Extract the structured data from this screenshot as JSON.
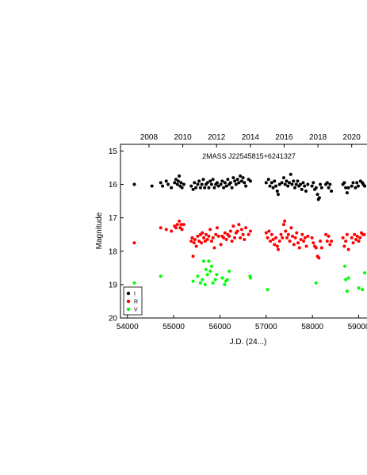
{
  "chart_data": {
    "type": "scatter",
    "title": "2MASS J22545815+6241327",
    "xlabel": "J.D. (24...)",
    "ylabel": "Magnitude",
    "xlim": [
      53850,
      59300
    ],
    "ylim": [
      20,
      14.8
    ],
    "y_inverted": true,
    "x_ticks": [
      54000,
      55000,
      56000,
      57000,
      58000,
      59000
    ],
    "y_ticks": [
      15,
      16,
      17,
      18,
      19,
      20
    ],
    "top_axis_ticks": [
      {
        "jd": 54466,
        "label": "2008"
      },
      {
        "jd": 55197,
        "label": "2010"
      },
      {
        "jd": 55927,
        "label": "2012"
      },
      {
        "jd": 56658,
        "label": "2014"
      },
      {
        "jd": 57388,
        "label": "2016"
      },
      {
        "jd": 58119,
        "label": "2018"
      },
      {
        "jd": 58849,
        "label": "2020"
      }
    ],
    "legend_position": "bottom-left",
    "grid": false,
    "series": [
      {
        "name": "I",
        "color": "#000000",
        "points": [
          [
            54150,
            16.0
          ],
          [
            54530,
            16.05
          ],
          [
            54720,
            15.95
          ],
          [
            54760,
            16.05
          ],
          [
            54840,
            15.9
          ],
          [
            54880,
            16.0
          ],
          [
            54950,
            16.1
          ],
          [
            55020,
            15.95
          ],
          [
            55050,
            15.85
          ],
          [
            55080,
            16.0
          ],
          [
            55100,
            15.9
          ],
          [
            55120,
            15.75
          ],
          [
            55140,
            16.05
          ],
          [
            55160,
            15.95
          ],
          [
            55180,
            16.1
          ],
          [
            55220,
            16.0
          ],
          [
            55380,
            16.05
          ],
          [
            55420,
            16.15
          ],
          [
            55450,
            15.95
          ],
          [
            55480,
            16.1
          ],
          [
            55520,
            16.0
          ],
          [
            55550,
            15.9
          ],
          [
            55580,
            16.1
          ],
          [
            55610,
            16.0
          ],
          [
            55640,
            15.85
          ],
          [
            55670,
            16.1
          ],
          [
            55700,
            16.0
          ],
          [
            55730,
            15.95
          ],
          [
            55760,
            16.1
          ],
          [
            55790,
            15.9
          ],
          [
            55820,
            16.0
          ],
          [
            55850,
            15.85
          ],
          [
            55880,
            16.1
          ],
          [
            55910,
            16.0
          ],
          [
            55940,
            15.95
          ],
          [
            55970,
            16.05
          ],
          [
            56020,
            16.0
          ],
          [
            56050,
            15.9
          ],
          [
            56080,
            16.1
          ],
          [
            56110,
            15.95
          ],
          [
            56140,
            16.05
          ],
          [
            56170,
            15.85
          ],
          [
            56200,
            16.0
          ],
          [
            56230,
            15.95
          ],
          [
            56260,
            16.1
          ],
          [
            56290,
            15.8
          ],
          [
            56320,
            15.9
          ],
          [
            56350,
            16.0
          ],
          [
            56380,
            15.85
          ],
          [
            56410,
            15.95
          ],
          [
            56440,
            15.75
          ],
          [
            56470,
            15.9
          ],
          [
            56500,
            15.8
          ],
          [
            56530,
            15.95
          ],
          [
            56560,
            16.05
          ],
          [
            56620,
            15.85
          ],
          [
            56660,
            15.9
          ],
          [
            57000,
            15.95
          ],
          [
            57050,
            15.85
          ],
          [
            57080,
            16.05
          ],
          [
            57120,
            15.95
          ],
          [
            57150,
            16.1
          ],
          [
            57180,
            15.9
          ],
          [
            57210,
            16.05
          ],
          [
            57240,
            16.2
          ],
          [
            57260,
            16.3
          ],
          [
            57290,
            16.0
          ],
          [
            57340,
            15.95
          ],
          [
            57380,
            15.8
          ],
          [
            57410,
            16.0
          ],
          [
            57440,
            15.9
          ],
          [
            57470,
            16.05
          ],
          [
            57500,
            15.95
          ],
          [
            57530,
            15.7
          ],
          [
            57560,
            16.0
          ],
          [
            57590,
            15.9
          ],
          [
            57620,
            16.1
          ],
          [
            57650,
            16.0
          ],
          [
            57680,
            15.9
          ],
          [
            57710,
            16.05
          ],
          [
            57740,
            16.0
          ],
          [
            57770,
            16.15
          ],
          [
            57800,
            15.95
          ],
          [
            57830,
            16.05
          ],
          [
            57860,
            16.2
          ],
          [
            57900,
            16.0
          ],
          [
            57990,
            16.05
          ],
          [
            58020,
            15.95
          ],
          [
            58050,
            16.15
          ],
          [
            58080,
            16.1
          ],
          [
            58110,
            16.3
          ],
          [
            58130,
            16.45
          ],
          [
            58150,
            16.4
          ],
          [
            58170,
            16.0
          ],
          [
            58200,
            16.1
          ],
          [
            58290,
            16.0
          ],
          [
            58320,
            15.95
          ],
          [
            58350,
            16.1
          ],
          [
            58380,
            16.0
          ],
          [
            58410,
            16.2
          ],
          [
            58660,
            16.0
          ],
          [
            58690,
            15.95
          ],
          [
            58720,
            16.1
          ],
          [
            58750,
            16.25
          ],
          [
            58780,
            16.1
          ],
          [
            58850,
            16.05
          ],
          [
            58880,
            15.95
          ],
          [
            58930,
            16.1
          ],
          [
            58960,
            15.95
          ],
          [
            58990,
            16.05
          ],
          [
            59040,
            15.9
          ],
          [
            59080,
            15.95
          ],
          [
            59100,
            16.0
          ],
          [
            59130,
            16.05
          ]
        ]
      },
      {
        "name": "R",
        "color": "#ff0000",
        "points": [
          [
            54150,
            17.75
          ],
          [
            54720,
            17.3
          ],
          [
            54840,
            17.35
          ],
          [
            54950,
            17.4
          ],
          [
            55020,
            17.25
          ],
          [
            55050,
            17.3
          ],
          [
            55080,
            17.2
          ],
          [
            55120,
            17.1
          ],
          [
            55140,
            17.3
          ],
          [
            55160,
            17.2
          ],
          [
            55180,
            17.35
          ],
          [
            55220,
            17.2
          ],
          [
            55380,
            17.7
          ],
          [
            55400,
            17.6
          ],
          [
            55420,
            18.15
          ],
          [
            55440,
            17.75
          ],
          [
            55460,
            17.65
          ],
          [
            55490,
            17.85
          ],
          [
            55520,
            17.55
          ],
          [
            55550,
            17.7
          ],
          [
            55580,
            17.5
          ],
          [
            55600,
            17.75
          ],
          [
            55620,
            17.45
          ],
          [
            55650,
            17.6
          ],
          [
            55680,
            17.7
          ],
          [
            55700,
            17.5
          ],
          [
            55730,
            17.65
          ],
          [
            55760,
            17.55
          ],
          [
            55790,
            17.35
          ],
          [
            55820,
            17.7
          ],
          [
            55850,
            17.6
          ],
          [
            55880,
            17.9
          ],
          [
            55910,
            17.5
          ],
          [
            55940,
            17.3
          ],
          [
            55970,
            17.55
          ],
          [
            56020,
            17.8
          ],
          [
            56050,
            17.55
          ],
          [
            56080,
            17.6
          ],
          [
            56110,
            17.45
          ],
          [
            56140,
            17.65
          ],
          [
            56170,
            17.5
          ],
          [
            56200,
            17.55
          ],
          [
            56230,
            17.4
          ],
          [
            56260,
            17.7
          ],
          [
            56290,
            17.25
          ],
          [
            56320,
            17.6
          ],
          [
            56350,
            17.45
          ],
          [
            56380,
            17.4
          ],
          [
            56410,
            17.2
          ],
          [
            56440,
            17.6
          ],
          [
            56470,
            17.35
          ],
          [
            56500,
            17.5
          ],
          [
            56530,
            17.65
          ],
          [
            56560,
            17.3
          ],
          [
            56620,
            17.5
          ],
          [
            56660,
            17.4
          ],
          [
            57000,
            17.45
          ],
          [
            57030,
            17.6
          ],
          [
            57060,
            17.4
          ],
          [
            57090,
            17.7
          ],
          [
            57120,
            17.5
          ],
          [
            57150,
            17.65
          ],
          [
            57180,
            17.8
          ],
          [
            57210,
            17.6
          ],
          [
            57240,
            17.85
          ],
          [
            57260,
            17.95
          ],
          [
            57290,
            17.7
          ],
          [
            57320,
            17.5
          ],
          [
            57350,
            17.6
          ],
          [
            57380,
            17.2
          ],
          [
            57400,
            17.1
          ],
          [
            57420,
            17.4
          ],
          [
            57450,
            17.6
          ],
          [
            57480,
            17.5
          ],
          [
            57510,
            17.7
          ],
          [
            57540,
            17.3
          ],
          [
            57570,
            17.55
          ],
          [
            57600,
            17.8
          ],
          [
            57630,
            17.6
          ],
          [
            57660,
            17.45
          ],
          [
            57690,
            17.75
          ],
          [
            57720,
            17.9
          ],
          [
            57750,
            17.65
          ],
          [
            57780,
            17.5
          ],
          [
            57810,
            17.7
          ],
          [
            57840,
            17.6
          ],
          [
            57870,
            17.85
          ],
          [
            57900,
            17.55
          ],
          [
            57990,
            17.6
          ],
          [
            58020,
            17.75
          ],
          [
            58050,
            17.85
          ],
          [
            58080,
            17.9
          ],
          [
            58110,
            18.15
          ],
          [
            58140,
            18.2
          ],
          [
            58170,
            17.7
          ],
          [
            58200,
            17.9
          ],
          [
            58290,
            17.5
          ],
          [
            58320,
            17.7
          ],
          [
            58350,
            17.55
          ],
          [
            58380,
            17.8
          ],
          [
            58410,
            17.7
          ],
          [
            58660,
            17.6
          ],
          [
            58690,
            17.85
          ],
          [
            58720,
            17.7
          ],
          [
            58750,
            17.5
          ],
          [
            58780,
            17.95
          ],
          [
            58850,
            17.6
          ],
          [
            58880,
            17.75
          ],
          [
            58910,
            17.5
          ],
          [
            58940,
            17.65
          ],
          [
            58970,
            17.55
          ],
          [
            59000,
            17.7
          ],
          [
            59030,
            17.6
          ],
          [
            59060,
            17.45
          ],
          [
            59090,
            17.5
          ],
          [
            59120,
            17.5
          ]
        ]
      },
      {
        "name": "V",
        "color": "#00ff00",
        "points": [
          [
            54150,
            18.95
          ],
          [
            54720,
            18.75
          ],
          [
            55420,
            18.9
          ],
          [
            55520,
            18.75
          ],
          [
            55580,
            18.95
          ],
          [
            55620,
            18.85
          ],
          [
            55650,
            18.3
          ],
          [
            55680,
            19.0
          ],
          [
            55700,
            18.55
          ],
          [
            55730,
            18.7
          ],
          [
            55760,
            18.3
          ],
          [
            55790,
            18.6
          ],
          [
            55820,
            18.45
          ],
          [
            55850,
            18.95
          ],
          [
            55900,
            18.85
          ],
          [
            55930,
            18.7
          ],
          [
            56050,
            18.8
          ],
          [
            56100,
            19.0
          ],
          [
            56130,
            18.9
          ],
          [
            56160,
            18.85
          ],
          [
            56200,
            18.6
          ],
          [
            56650,
            18.75
          ],
          [
            56660,
            18.8
          ],
          [
            57030,
            19.15
          ],
          [
            58080,
            18.95
          ],
          [
            58700,
            18.45
          ],
          [
            58720,
            18.85
          ],
          [
            58750,
            19.2
          ],
          [
            58780,
            18.8
          ],
          [
            59000,
            19.1
          ],
          [
            59080,
            19.15
          ],
          [
            59130,
            18.65
          ]
        ]
      }
    ]
  }
}
